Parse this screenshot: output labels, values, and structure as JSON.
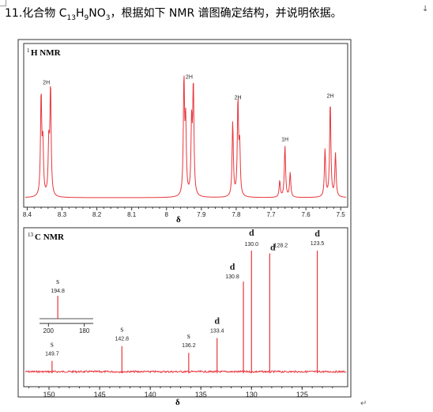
{
  "question": {
    "number": "11.",
    "text_before": "化合物 C",
    "sub_c": "13",
    "h": "H",
    "sub_h": "9",
    "no": "NO",
    "sub_o": "3",
    "text_after": "，根据如下 NMR 谱图确定结构，并说明依据。",
    "mark": "↓"
  },
  "enter_mark": "↵",
  "h_nmr": {
    "title_sup": "1",
    "title": "H NMR",
    "axis_symbol": "δ",
    "ticks": [
      "8.4",
      "8.3",
      "8.2",
      "8.1",
      "8",
      "7.9",
      "7.8",
      "7.7",
      "7.6",
      "7.5"
    ],
    "line_color": "#e8363d"
  },
  "c_nmr": {
    "title_sup": "13",
    "title": "C NMR",
    "axis_symbol": "δ",
    "ticks": [
      "150",
      "145",
      "140",
      "135",
      "130",
      "125"
    ],
    "line_color": "#e8363d",
    "inset_ticks": [
      "200",
      "180"
    ]
  },
  "chart_data": [
    {
      "type": "line",
      "title": "1H NMR",
      "xlabel": "δ",
      "xlim": [
        8.41,
        7.48
      ],
      "reversed_x": true,
      "peaks": [
        {
          "shift": 8.345,
          "integration": "2H",
          "lines": [
            8.36,
            8.355,
            8.338,
            8.333
          ]
        },
        {
          "shift": 7.935,
          "integration": "2H",
          "lines": [
            7.95,
            7.945,
            7.928,
            7.923
          ]
        },
        {
          "shift": 7.795,
          "integration": "2H",
          "lines": [
            7.81,
            7.795,
            7.79
          ]
        },
        {
          "shift": 7.66,
          "integration": "1H",
          "lines": [
            7.675,
            7.66,
            7.645
          ]
        },
        {
          "shift": 7.53,
          "integration": "2H",
          "lines": [
            7.545,
            7.53,
            7.515
          ]
        }
      ]
    },
    {
      "type": "line",
      "title": "13C NMR",
      "xlabel": "δ",
      "xlim": [
        152.5,
        120.5
      ],
      "reversed_x": true,
      "peaks": [
        {
          "shift": 149.7,
          "multiplicity": "s",
          "label": "149.7"
        },
        {
          "shift": 142.8,
          "multiplicity": "s",
          "label": "142.8"
        },
        {
          "shift": 136.2,
          "multiplicity": "s",
          "label": "136.2"
        },
        {
          "shift": 133.4,
          "multiplicity": "d",
          "label": "133.4"
        },
        {
          "shift": 130.8,
          "multiplicity": "d",
          "label": "130.8"
        },
        {
          "shift": 130.0,
          "multiplicity": "d",
          "label": "130.0"
        },
        {
          "shift": 128.2,
          "multiplicity": "d",
          "label": "128.2"
        },
        {
          "shift": 123.5,
          "multiplicity": "d",
          "label": "123.5"
        }
      ],
      "inset": {
        "xlim": [
          205,
          175
        ],
        "peaks": [
          {
            "shift": 194.8,
            "multiplicity": "s",
            "label": "194.8"
          }
        ]
      }
    }
  ]
}
